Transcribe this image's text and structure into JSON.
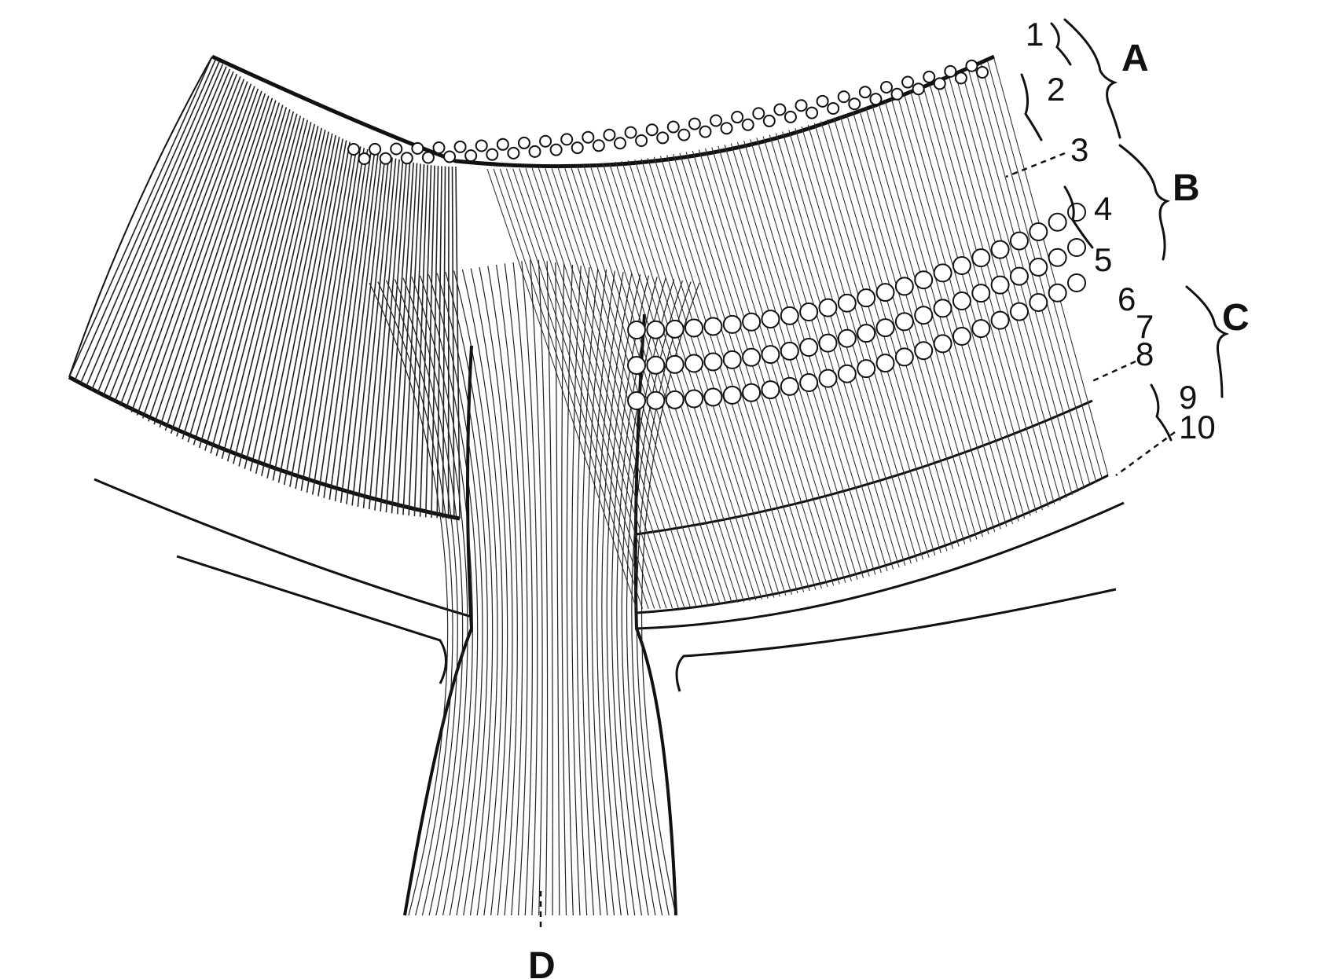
{
  "figure": {
    "layer_labels": [
      "1",
      "2",
      "3",
      "4",
      "5",
      "6",
      "7",
      "8",
      "9",
      "10"
    ],
    "group_labels": [
      "A",
      "B",
      "C"
    ],
    "nerve_label": "D",
    "colors": {
      "ink": "#111111",
      "paper": "#ffffff"
    }
  }
}
